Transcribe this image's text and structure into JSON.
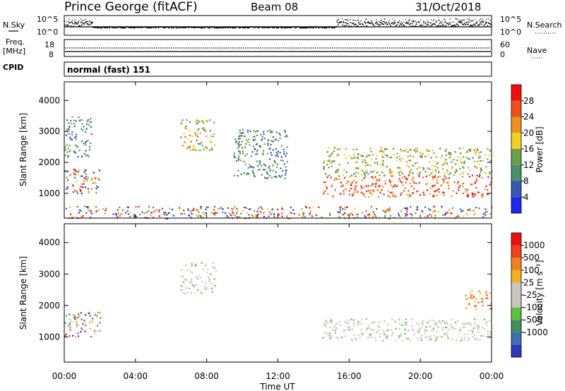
{
  "header": {
    "station": "Prince George (fitACF)",
    "beam": "Beam 08",
    "date": "31/Oct/2018"
  },
  "panels": {
    "nsky": {
      "left_label": "N.Sky",
      "right_label": "N.Search",
      "left_ticks": [
        "10^5",
        "10^0"
      ],
      "right_ticks": [
        "10^5",
        "10^0"
      ]
    },
    "freq": {
      "left_label": "Freq.",
      "left_unit": "[MHz]",
      "right_label": "Nave",
      "left_ticks": [
        "18",
        "8"
      ],
      "right_ticks": [
        "60",
        "0"
      ]
    },
    "cpid": {
      "label": "CPID",
      "value": "normal (fast) 151"
    }
  },
  "colors": {
    "power_scale": [
      "#1a28f0",
      "#3a57b5",
      "#4b8f6a",
      "#6aa04a",
      "#f0d020",
      "#f09020",
      "#f05020",
      "#ee1010"
    ],
    "velocity_scale": [
      "#2a3ab8",
      "#3f6fb0",
      "#3f8f60",
      "#5cc040",
      "#c8c8c0",
      "#c8c8c0",
      "#f0b020",
      "#f08020",
      "#f04020",
      "#e81010"
    ]
  },
  "chart_data": [
    {
      "type": "heatmap",
      "name": "power",
      "ylabel": "Slant Range [km]",
      "yticks": [
        "1000",
        "2000",
        "3000",
        "4000"
      ],
      "ylim": [
        200,
        4600
      ],
      "xticks": [
        "00:00",
        "04:00",
        "08:00",
        "12:00",
        "16:00",
        "20:00",
        "00:00"
      ],
      "xlim_hours": [
        0,
        24
      ],
      "colorbar": {
        "label": "Power [dB]",
        "ticks": [
          "4",
          "8",
          "12",
          "16",
          "20",
          "24",
          "28"
        ]
      },
      "features": [
        {
          "t": [
            0.0,
            2.0
          ],
          "range": [
            1000,
            1800
          ],
          "level": "mixed"
        },
        {
          "t": [
            0.0,
            1.5
          ],
          "range": [
            2200,
            3500
          ],
          "level": "weak"
        },
        {
          "t": [
            6.5,
            8.5
          ],
          "range": [
            2400,
            3400
          ],
          "level": "moderate"
        },
        {
          "t": [
            9.5,
            12.5
          ],
          "range": [
            1500,
            3100
          ],
          "level": "weak"
        },
        {
          "t": [
            14.5,
            24.0
          ],
          "range": [
            900,
            1600
          ],
          "level": "strong"
        },
        {
          "t": [
            14.5,
            24.0
          ],
          "range": [
            1600,
            2500
          ],
          "level": "moderate"
        },
        {
          "t": [
            0.0,
            24.0
          ],
          "range": [
            200,
            600
          ],
          "level": "ground scatter"
        }
      ]
    },
    {
      "type": "heatmap",
      "name": "velocity",
      "ylabel": "Slant Range [km]",
      "yticks": [
        "1000",
        "2000",
        "3000",
        "4000"
      ],
      "ylim": [
        200,
        4600
      ],
      "xticks": [
        "00:00",
        "04:00",
        "08:00",
        "12:00",
        "16:00",
        "20:00",
        "00:00"
      ],
      "xlim_hours": [
        0,
        24
      ],
      "xlabel": "Time UT",
      "colorbar": {
        "label": "Velocity [m s⁻¹]",
        "ticks": [
          "1000",
          "500",
          "100",
          "25",
          "-25",
          "-100",
          "-500",
          "-1000"
        ]
      },
      "features": [
        {
          "t": [
            0.0,
            2.0
          ],
          "range": [
            1000,
            1800
          ],
          "level": "mixed"
        },
        {
          "t": [
            6.5,
            8.5
          ],
          "range": [
            2400,
            3400
          ],
          "level": "near zero"
        },
        {
          "t": [
            14.5,
            24.0
          ],
          "range": [
            900,
            1600
          ],
          "level": "near zero"
        },
        {
          "t": [
            22.5,
            24.0
          ],
          "range": [
            1900,
            2500
          ],
          "level": "negative"
        }
      ]
    }
  ]
}
